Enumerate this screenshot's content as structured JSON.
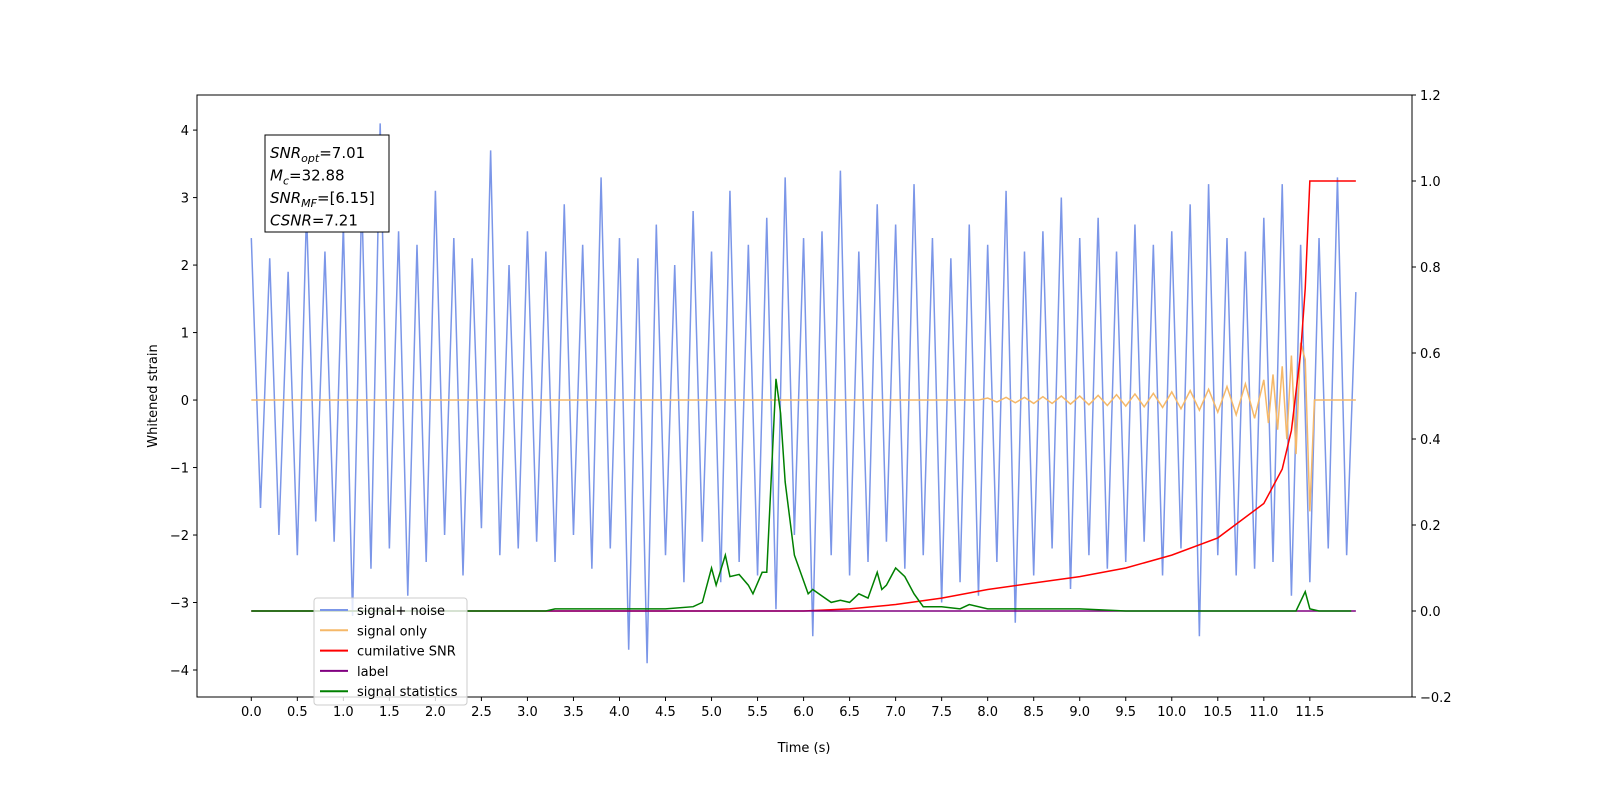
{
  "chart_data": {
    "type": "line",
    "xlabel": "Time (s)",
    "ylabel": "Whitened strain",
    "xlim": [
      -0.59,
      12.61
    ],
    "ylim": [
      -4.4,
      4.52
    ],
    "y2lim": [
      -0.2,
      1.2
    ],
    "xticks": [
      {
        "value": 0,
        "label": "0.0"
      },
      0.5,
      {
        "value": 1,
        "label": "1.0"
      },
      1.5,
      {
        "value": 2,
        "label": "2.0"
      },
      2.5,
      {
        "value": 3,
        "label": "3.0"
      },
      3.5,
      {
        "value": 4,
        "label": "4.0"
      },
      4.5,
      {
        "value": 5,
        "label": "5.0"
      },
      5.5,
      {
        "value": 6,
        "label": "6.0"
      },
      6.5,
      {
        "value": 7,
        "label": "7.0"
      },
      7.5,
      {
        "value": 8,
        "label": "8.0"
      },
      8.5,
      {
        "value": 9,
        "label": "9.0"
      },
      9.5,
      {
        "value": 10,
        "label": "10.0"
      },
      10.5,
      {
        "value": 11,
        "label": "11.0"
      },
      11.5
    ],
    "yticks": [
      {
        "value": -4,
        "label": "−4"
      },
      {
        "value": -3,
        "label": "−3"
      },
      {
        "value": -2,
        "label": "−2"
      },
      {
        "value": -1,
        "label": "−1"
      },
      0,
      1,
      2,
      3,
      4
    ],
    "y2ticks": [
      {
        "value": -0.2,
        "label": "−0.2"
      },
      {
        "value": 0,
        "label": "0.0"
      },
      0.2,
      0.4,
      0.6,
      0.8,
      {
        "value": 1,
        "label": "1.0"
      },
      1.2
    ],
    "annotation": [
      {
        "main": "SNR",
        "sub": "opt",
        "rest": "=7.01"
      },
      {
        "main": "M",
        "sub": "c",
        "rest": "=32.88"
      },
      {
        "main": "SNR",
        "sub": "MF",
        "rest": "=[6.15]"
      },
      {
        "main": "CSNR",
        "sub": "",
        "rest": "=7.21"
      }
    ],
    "series": [
      {
        "name": "signal+ noise",
        "color": "#7b96e8",
        "axis": "y",
        "x": [
          0,
          0.1,
          0.2,
          0.3,
          0.4,
          0.5,
          0.6,
          0.7,
          0.8,
          0.9,
          1,
          1.1,
          1.2,
          1.3,
          1.4,
          1.5,
          1.6,
          1.7,
          1.8,
          1.9,
          2,
          2.1,
          2.2,
          2.3,
          2.4,
          2.5,
          2.6,
          2.7,
          2.8,
          2.9,
          3,
          3.1,
          3.2,
          3.3,
          3.4,
          3.5,
          3.6,
          3.7,
          3.8,
          3.9,
          4,
          4.1,
          4.2,
          4.3,
          4.4,
          4.5,
          4.6,
          4.7,
          4.8,
          4.9,
          5,
          5.1,
          5.2,
          5.3,
          5.4,
          5.5,
          5.6,
          5.7,
          5.8,
          5.9,
          6,
          6.1,
          6.2,
          6.3,
          6.4,
          6.5,
          6.6,
          6.7,
          6.8,
          6.9,
          7,
          7.1,
          7.2,
          7.3,
          7.4,
          7.5,
          7.6,
          7.7,
          7.8,
          7.9,
          8,
          8.1,
          8.2,
          8.3,
          8.4,
          8.5,
          8.6,
          8.7,
          8.8,
          8.9,
          9,
          9.1,
          9.2,
          9.3,
          9.4,
          9.5,
          9.6,
          9.7,
          9.8,
          9.9,
          10,
          10.1,
          10.2,
          10.3,
          10.4,
          10.5,
          10.6,
          10.7,
          10.8,
          10.9,
          11,
          11.1,
          11.2,
          11.3,
          11.4,
          11.5,
          11.6,
          11.7,
          11.8,
          11.9,
          12
        ],
        "values": [
          2.4,
          -1.6,
          2.1,
          -2.0,
          1.9,
          -2.3,
          2.8,
          -1.8,
          2.2,
          -2.1,
          2.6,
          -3.2,
          3.0,
          -2.5,
          4.1,
          -2.2,
          2.5,
          -2.9,
          2.3,
          -2.4,
          3.1,
          -2.0,
          2.4,
          -2.6,
          2.1,
          -1.9,
          3.7,
          -2.3,
          2.0,
          -2.2,
          2.5,
          -2.1,
          2.2,
          -2.4,
          2.9,
          -2.0,
          2.3,
          -2.5,
          3.3,
          -2.2,
          2.4,
          -3.7,
          2.1,
          -3.9,
          2.6,
          -2.3,
          2.0,
          -2.7,
          2.8,
          -2.1,
          2.2,
          -2.7,
          3.1,
          -2.4,
          2.3,
          -2.6,
          2.7,
          -3.1,
          3.3,
          -2.0,
          2.4,
          -3.5,
          2.5,
          -2.3,
          3.4,
          -2.6,
          2.2,
          -2.4,
          2.9,
          -2.1,
          2.6,
          -2.5,
          3.2,
          -2.3,
          2.4,
          -3.0,
          2.1,
          -2.7,
          2.6,
          -2.9,
          2.3,
          -2.4,
          3.1,
          -3.3,
          2.2,
          -2.6,
          2.5,
          -2.2,
          3.0,
          -2.8,
          2.4,
          -2.3,
          2.7,
          -2.5,
          2.2,
          -2.4,
          2.6,
          -2.1,
          2.3,
          -2.6,
          2.5,
          -2.2,
          2.9,
          -3.5,
          3.2,
          -2.3,
          2.4,
          -2.6,
          2.2,
          -2.5,
          2.7,
          -2.4,
          3.2,
          -2.9,
          2.3,
          -2.7,
          2.4,
          -2.2,
          3.3,
          -2.3,
          1.6
        ]
      },
      {
        "name": "signal only",
        "color": "#f5b869",
        "axis": "y",
        "x": [
          0,
          7.9,
          8,
          8.1,
          8.2,
          8.3,
          8.4,
          8.5,
          8.6,
          8.7,
          8.8,
          8.9,
          9,
          9.1,
          9.2,
          9.3,
          9.4,
          9.5,
          9.6,
          9.7,
          9.8,
          9.9,
          10,
          10.1,
          10.2,
          10.3,
          10.4,
          10.5,
          10.6,
          10.7,
          10.8,
          10.9,
          11,
          11.05,
          11.1,
          11.15,
          11.2,
          11.25,
          11.3,
          11.35,
          11.4,
          11.45,
          11.5,
          11.55,
          12
        ],
        "values": [
          0,
          0,
          0.03,
          -0.03,
          0.04,
          -0.04,
          0.04,
          -0.05,
          0.05,
          -0.05,
          0.06,
          -0.06,
          0.06,
          -0.07,
          0.07,
          -0.08,
          0.08,
          -0.09,
          0.09,
          -0.1,
          0.1,
          -0.11,
          0.12,
          -0.13,
          0.14,
          -0.15,
          0.16,
          -0.18,
          0.2,
          -0.22,
          0.24,
          -0.27,
          0.3,
          -0.34,
          0.38,
          -0.44,
          0.5,
          -0.58,
          0.66,
          -0.8,
          0.85,
          0.6,
          -1.65,
          0,
          0
        ]
      },
      {
        "name": "cumilative SNR",
        "color": "#ff0000",
        "axis": "y2",
        "x": [
          0,
          6,
          6.5,
          7,
          7.5,
          8,
          8.5,
          9,
          9.5,
          10,
          10.5,
          11,
          11.2,
          11.3,
          11.4,
          11.45,
          11.48,
          11.5,
          12
        ],
        "values": [
          0,
          0,
          0.005,
          0.015,
          0.03,
          0.05,
          0.065,
          0.08,
          0.1,
          0.13,
          0.17,
          0.25,
          0.33,
          0.42,
          0.6,
          0.75,
          0.9,
          1.0,
          1.0
        ]
      },
      {
        "name": "label",
        "color": "#800080",
        "axis": "y2",
        "x": [
          0,
          12
        ],
        "values": [
          0,
          0
        ]
      },
      {
        "name": "signal statistics",
        "color": "#008000",
        "axis": "y2",
        "x": [
          0,
          3.2,
          3.3,
          4.5,
          4.8,
          4.9,
          5,
          5.05,
          5.15,
          5.2,
          5.3,
          5.4,
          5.45,
          5.55,
          5.6,
          5.7,
          5.75,
          5.8,
          5.9,
          6,
          6.05,
          6.1,
          6.2,
          6.3,
          6.4,
          6.5,
          6.6,
          6.7,
          6.8,
          6.85,
          6.9,
          7,
          7.1,
          7.2,
          7.3,
          7.5,
          7.7,
          7.8,
          8,
          8.5,
          9,
          9.5,
          11.35,
          11.45,
          11.5,
          11.6,
          11.95
        ],
        "values": [
          0,
          0,
          0.005,
          0.005,
          0.01,
          0.02,
          0.1,
          0.06,
          0.13,
          0.08,
          0.085,
          0.06,
          0.04,
          0.09,
          0.09,
          0.54,
          0.46,
          0.3,
          0.13,
          0.07,
          0.04,
          0.05,
          0.035,
          0.02,
          0.025,
          0.02,
          0.04,
          0.03,
          0.09,
          0.05,
          0.06,
          0.1,
          0.08,
          0.04,
          0.01,
          0.01,
          0.005,
          0.015,
          0.005,
          0.005,
          0.005,
          0,
          0,
          0.045,
          0.005,
          0,
          0
        ]
      }
    ]
  }
}
